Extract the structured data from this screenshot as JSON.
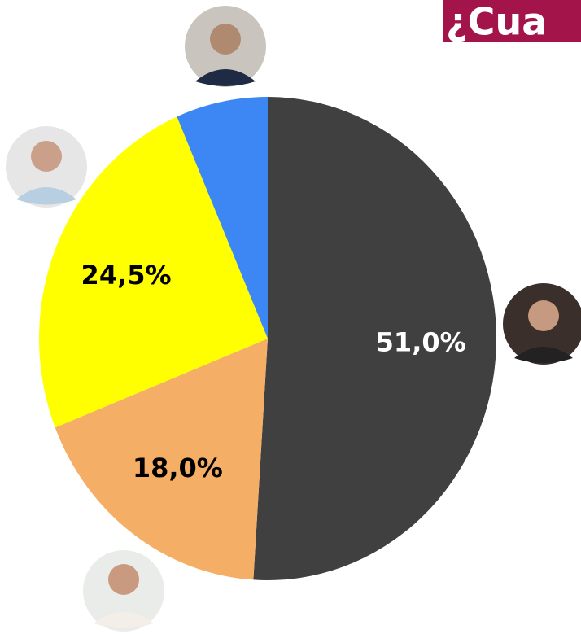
{
  "chart_data": {
    "type": "pie",
    "logo": "¿Cua",
    "values": [
      51.0,
      18.0,
      24.5,
      6.5
    ],
    "value_labels": [
      "51,0%",
      "18,0%",
      "24,5%",
      null
    ],
    "colors": [
      "#404040",
      "#f5ae66",
      "#ffff00",
      "#3d87f5"
    ],
    "start_angle": 0,
    "direction": "clockwise"
  }
}
